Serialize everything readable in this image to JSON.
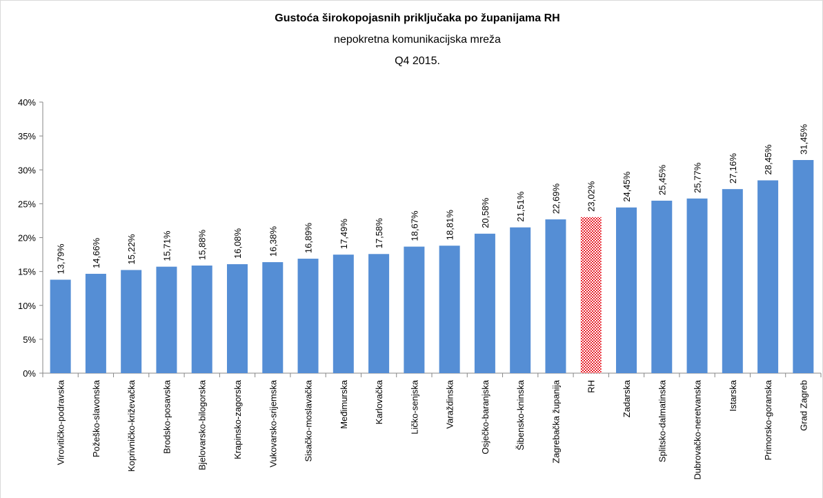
{
  "chart_data": {
    "type": "bar",
    "title": "Gustoća širokopojasnih priključaka po županijama RH",
    "subtitle": "nepokretna komunikacijska mreža",
    "period": "Q4 2015.",
    "categories": [
      "Virovitičko-podravska",
      "Požeško-slavonska",
      "Koprivničko-križevačka",
      "Brodsko-posavska",
      "Bjelovarsko-bilogorska",
      "Krapinsko-zagorska",
      "Vukovarsko-srijemska",
      "Sisačko-moslavačka",
      "Međimurska",
      "Karlovačka",
      "Ličko-senjska",
      "Varaždinska",
      "Osječko-baranjska",
      "Šibensko-kninska",
      "Zagrebačka županija",
      "RH",
      "Zadarska",
      "Splitsko-dalmatinska",
      "Dubrovačko-neretvanska",
      "Istarska",
      "Primorsko-goranska",
      "Grad Zagreb"
    ],
    "values": [
      13.79,
      14.66,
      15.22,
      15.71,
      15.88,
      16.08,
      16.38,
      16.89,
      17.49,
      17.58,
      18.67,
      18.81,
      20.58,
      21.51,
      22.69,
      23.02,
      24.45,
      25.45,
      25.77,
      27.16,
      28.45,
      31.45
    ],
    "value_labels": [
      "13,79%",
      "14,66%",
      "15,22%",
      "15,71%",
      "15,88%",
      "16,08%",
      "16,38%",
      "16,89%",
      "17,49%",
      "17,58%",
      "18,67%",
      "18,81%",
      "20,58%",
      "21,51%",
      "22,69%",
      "23,02%",
      "24,45%",
      "25,45%",
      "25,77%",
      "27,16%",
      "28,45%",
      "31,45%"
    ],
    "colors": [
      "#558ed5",
      "#558ed5",
      "#558ed5",
      "#558ed5",
      "#558ed5",
      "#558ed5",
      "#558ed5",
      "#558ed5",
      "#558ed5",
      "#558ed5",
      "#558ed5",
      "#558ed5",
      "#558ed5",
      "#558ed5",
      "#558ed5",
      "#e8202a",
      "#558ed5",
      "#558ed5",
      "#558ed5",
      "#558ed5",
      "#558ed5",
      "#558ed5"
    ],
    "ylim": [
      0,
      40
    ],
    "yticks": [
      {
        "value": 0,
        "label": "0%"
      },
      {
        "value": 5,
        "label": "5%"
      },
      {
        "value": 10,
        "label": "10%"
      },
      {
        "value": 15,
        "label": "15%"
      },
      {
        "value": 20,
        "label": "20%"
      },
      {
        "value": 25,
        "label": "25%"
      },
      {
        "value": 30,
        "label": "30%"
      },
      {
        "value": 35,
        "label": "35%"
      },
      {
        "value": 40,
        "label": "40%"
      }
    ],
    "grid": false
  }
}
